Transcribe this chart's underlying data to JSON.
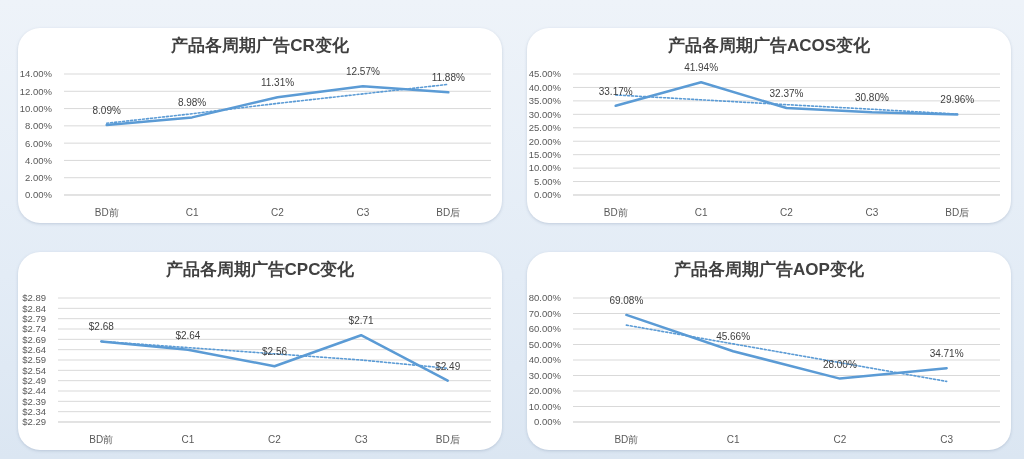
{
  "chart_data": [
    {
      "type": "line",
      "title": "产品各周期广告CR变化",
      "categories": [
        "BD前",
        "C1",
        "C2",
        "C3",
        "BD后"
      ],
      "ylim": [
        0,
        14
      ],
      "yticks": [
        {
          "value": 0,
          "label": "0.00%"
        },
        {
          "value": 2,
          "label": "2.00%"
        },
        {
          "value": 4,
          "label": "4.00%"
        },
        {
          "value": 6,
          "label": "6.00%"
        },
        {
          "value": 8,
          "label": "8.00%"
        },
        {
          "value": 10,
          "label": "10.00%"
        },
        {
          "value": 12,
          "label": "12.00%"
        },
        {
          "value": 14,
          "label": "14.00%"
        }
      ],
      "grid": "y",
      "series": [
        {
          "color": "#5b9bd5",
          "line_style": "solid",
          "values": [
            8.09,
            8.98,
            11.31,
            12.57,
            11.88
          ],
          "value_labels": [
            "8.09%",
            "8.98%",
            "11.31%",
            "12.57%",
            "11.88%"
          ]
        },
        {
          "type": "line",
          "color": "#5b9bd5",
          "line_style": "dotted",
          "values": [
            8.3,
            9.4,
            10.6,
            11.7,
            12.8
          ]
        }
      ]
    },
    {
      "type": "line",
      "title": "产品各周期广告ACOS变化",
      "categories": [
        "BD前",
        "C1",
        "C2",
        "C3",
        "BD后"
      ],
      "ylim": [
        0,
        45
      ],
      "yticks": [
        {
          "value": 0,
          "label": "0.00%"
        },
        {
          "value": 5,
          "label": "5.00%"
        },
        {
          "value": 10,
          "label": "10.00%"
        },
        {
          "value": 15,
          "label": "15.00%"
        },
        {
          "value": 20,
          "label": "20.00%"
        },
        {
          "value": 25,
          "label": "25.00%"
        },
        {
          "value": 30,
          "label": "30.00%"
        },
        {
          "value": 35,
          "label": "35.00%"
        },
        {
          "value": 40,
          "label": "40.00%"
        },
        {
          "value": 45,
          "label": "45.00%"
        }
      ],
      "grid": "y",
      "series": [
        {
          "color": "#5b9bd5",
          "line_style": "solid",
          "values": [
            33.17,
            41.94,
            32.37,
            30.8,
            29.96
          ],
          "value_labels": [
            "33.17%",
            "41.94%",
            "32.37%",
            "30.80%",
            "29.96%"
          ]
        },
        {
          "type": "line",
          "color": "#5b9bd5",
          "line_style": "dotted",
          "values": [
            37.2,
            35.4,
            33.6,
            31.9,
            30.1
          ]
        }
      ]
    },
    {
      "type": "line",
      "title": "产品各周期广告CPC变化",
      "categories": [
        "BD前",
        "C1",
        "C2",
        "C3",
        "BD后"
      ],
      "ylim": [
        2.29,
        2.89
      ],
      "yticks": [
        {
          "value": 2.29,
          "label": "$2.29"
        },
        {
          "value": 2.34,
          "label": "$2.34"
        },
        {
          "value": 2.39,
          "label": "$2.39"
        },
        {
          "value": 2.44,
          "label": "$2.44"
        },
        {
          "value": 2.49,
          "label": "$2.49"
        },
        {
          "value": 2.54,
          "label": "$2.54"
        },
        {
          "value": 2.59,
          "label": "$2.59"
        },
        {
          "value": 2.64,
          "label": "$2.64"
        },
        {
          "value": 2.69,
          "label": "$2.69"
        },
        {
          "value": 2.74,
          "label": "$2.74"
        },
        {
          "value": 2.79,
          "label": "$2.79"
        },
        {
          "value": 2.84,
          "label": "$2.84"
        },
        {
          "value": 2.89,
          "label": "$2.89"
        }
      ],
      "grid": "y",
      "series": [
        {
          "color": "#5b9bd5",
          "line_style": "solid",
          "values": [
            2.68,
            2.64,
            2.56,
            2.71,
            2.49
          ],
          "value_labels": [
            "$2.68",
            "$2.64",
            "$2.56",
            "$2.71",
            "$2.49"
          ]
        },
        {
          "type": "line",
          "color": "#5b9bd5",
          "line_style": "dotted",
          "values": [
            2.68,
            2.65,
            2.62,
            2.59,
            2.55
          ]
        }
      ]
    },
    {
      "type": "line",
      "title": "产品各周期广告AOP变化",
      "categories": [
        "BD前",
        "C1",
        "C2",
        "C3"
      ],
      "ylim": [
        0,
        80
      ],
      "yticks": [
        {
          "value": 0,
          "label": "0.00%"
        },
        {
          "value": 10,
          "label": "10.00%"
        },
        {
          "value": 20,
          "label": "20.00%"
        },
        {
          "value": 30,
          "label": "30.00%"
        },
        {
          "value": 40,
          "label": "40.00%"
        },
        {
          "value": 50,
          "label": "50.00%"
        },
        {
          "value": 60,
          "label": "60.00%"
        },
        {
          "value": 70,
          "label": "70.00%"
        },
        {
          "value": 80,
          "label": "80.00%"
        }
      ],
      "grid": "y",
      "series": [
        {
          "color": "#5b9bd5",
          "line_style": "solid",
          "values": [
            69.08,
            45.66,
            28.0,
            34.71
          ],
          "value_labels": [
            "69.08%",
            "45.66%",
            "28.00%",
            "34.71%"
          ]
        },
        {
          "type": "line",
          "color": "#5b9bd5",
          "line_style": "dotted",
          "values": [
            62.5,
            50.4,
            38.3,
            26.2
          ]
        }
      ]
    }
  ]
}
